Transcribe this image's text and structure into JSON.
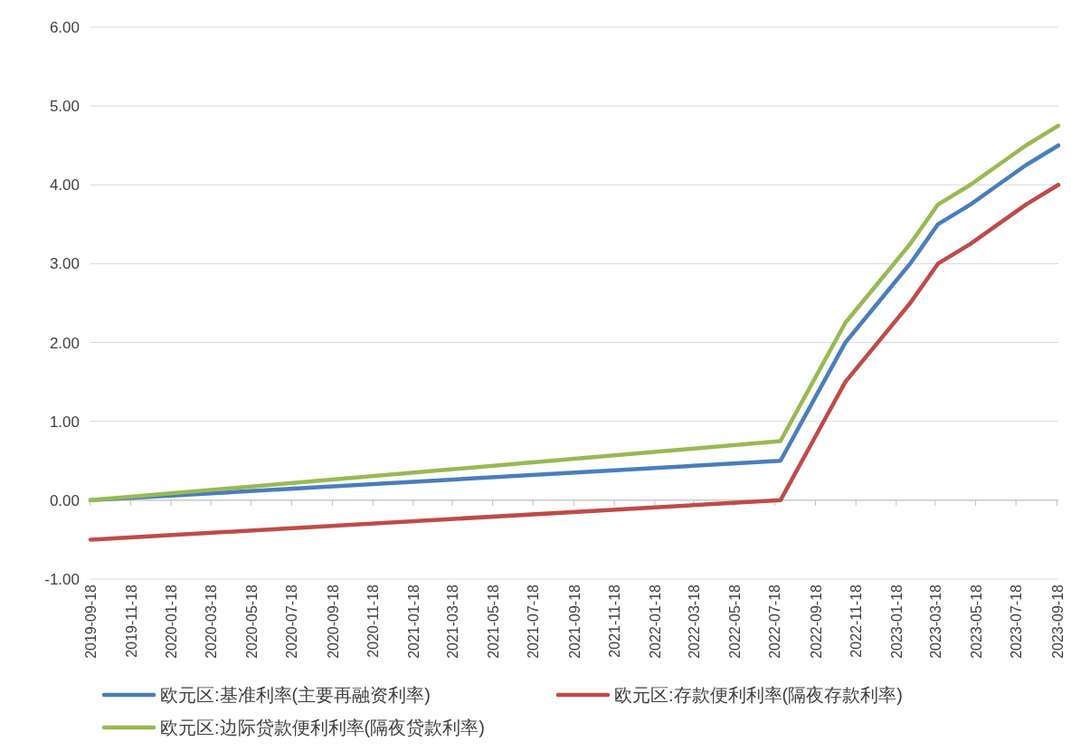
{
  "chart_data": {
    "type": "line",
    "x": [
      "2019-09-18",
      "2022-07-27",
      "2022-09-14",
      "2022-11-02",
      "2022-12-21",
      "2023-02-08",
      "2023-03-22",
      "2023-05-10",
      "2023-06-21",
      "2023-08-02",
      "2023-09-20"
    ],
    "series": [
      {
        "name": "欧元区:基准利率(主要再融资利率)",
        "color": "#4a7ebb",
        "values": [
          0,
          0.5,
          1.25,
          2.0,
          2.5,
          3.0,
          3.5,
          3.75,
          4.0,
          4.25,
          4.5
        ]
      },
      {
        "name": "欧元区:存款便利利率(隔夜存款利率)",
        "color": "#be4b48",
        "values": [
          -0.5,
          0,
          0.75,
          1.5,
          2.0,
          2.5,
          3.0,
          3.25,
          3.5,
          3.75,
          4.0
        ]
      },
      {
        "name": "欧元区:边际贷款便利利率(隔夜贷款利率)",
        "color": "#98b954",
        "values": [
          0,
          0.75,
          1.5,
          2.25,
          2.75,
          3.25,
          3.75,
          4.0,
          4.25,
          4.5,
          4.75
        ]
      }
    ],
    "xlim": [
      "2019-09-18",
      "2023-09-20"
    ],
    "xticks": [
      "2019-09-18",
      "2019-11-18",
      "2020-01-18",
      "2020-03-18",
      "2020-05-18",
      "2020-07-18",
      "2020-09-18",
      "2020-11-18",
      "2021-01-18",
      "2021-03-18",
      "2021-05-18",
      "2021-07-18",
      "2021-09-18",
      "2021-11-18",
      "2022-01-18",
      "2022-03-18",
      "2022-05-18",
      "2022-07-18",
      "2022-09-18",
      "2022-11-18",
      "2023-01-18",
      "2023-03-18",
      "2023-05-18",
      "2023-07-18",
      "2023-09-18"
    ],
    "ylim": [
      -1,
      6
    ],
    "yticks": [
      {
        "value": -1,
        "label": "-1.00"
      },
      {
        "value": 0,
        "label": "0.00"
      },
      {
        "value": 1,
        "label": "1.00"
      },
      {
        "value": 2,
        "label": "2.00"
      },
      {
        "value": 3,
        "label": "3.00"
      },
      {
        "value": 4,
        "label": "4.00"
      },
      {
        "value": 5,
        "label": "5.00"
      },
      {
        "value": 6,
        "label": "6.00"
      }
    ],
    "grid": "y",
    "legend": "bottom",
    "line_style": "solid",
    "marker": "none"
  }
}
